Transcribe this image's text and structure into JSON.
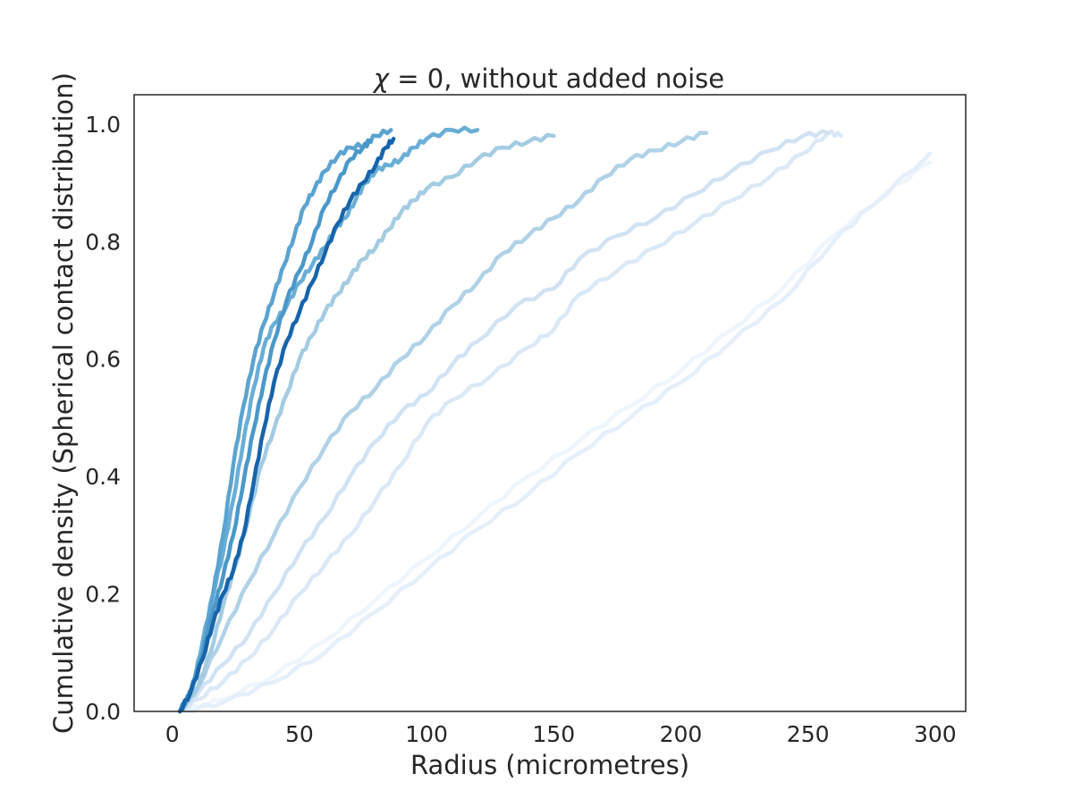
{
  "chart_data": {
    "type": "line",
    "title": "χ = 0, without added noise",
    "title_parts": {
      "symbol": "χ",
      "rest": " = 0, without added noise"
    },
    "xlabel": "Radius (micrometres)",
    "ylabel": "Cumulative density (Spherical contact distribution)",
    "xlim": [
      -15,
      312
    ],
    "ylim": [
      0,
      1.05
    ],
    "xticks": [
      0,
      50,
      100,
      150,
      200,
      250,
      300
    ],
    "yticks": [
      0.0,
      0.2,
      0.4,
      0.6,
      0.8,
      1.0
    ],
    "xtick_labels": [
      "0",
      "50",
      "100",
      "150",
      "200",
      "250",
      "300"
    ],
    "ytick_labels": [
      "0.0",
      "0.2",
      "0.4",
      "0.6",
      "0.8",
      "1.0"
    ],
    "grid": false,
    "legend": "none",
    "series": [
      {
        "color": "#eef5fc",
        "points": [
          [
            5,
            0
          ],
          [
            20,
            0.02
          ],
          [
            40,
            0.06
          ],
          [
            60,
            0.12
          ],
          [
            80,
            0.19
          ],
          [
            100,
            0.26
          ],
          [
            120,
            0.33
          ],
          [
            140,
            0.4
          ],
          [
            160,
            0.46
          ],
          [
            180,
            0.52
          ],
          [
            200,
            0.58
          ],
          [
            220,
            0.65
          ],
          [
            240,
            0.72
          ],
          [
            260,
            0.81
          ],
          [
            280,
            0.88
          ],
          [
            298,
            0.935
          ]
        ]
      },
      {
        "color": "#e5effa",
        "points": [
          [
            5,
            0
          ],
          [
            20,
            0.015
          ],
          [
            40,
            0.05
          ],
          [
            60,
            0.1
          ],
          [
            80,
            0.17
          ],
          [
            100,
            0.24
          ],
          [
            120,
            0.31
          ],
          [
            140,
            0.37
          ],
          [
            160,
            0.44
          ],
          [
            180,
            0.5
          ],
          [
            200,
            0.56
          ],
          [
            220,
            0.63
          ],
          [
            240,
            0.7
          ],
          [
            260,
            0.8
          ],
          [
            275,
            0.86
          ],
          [
            298,
            0.95
          ]
        ]
      },
      {
        "color": "#dbe9f6",
        "points": [
          [
            3,
            0
          ],
          [
            10,
            0.02
          ],
          [
            20,
            0.05
          ],
          [
            30,
            0.09
          ],
          [
            40,
            0.14
          ],
          [
            50,
            0.2
          ],
          [
            60,
            0.25
          ],
          [
            70,
            0.3
          ],
          [
            80,
            0.36
          ],
          [
            90,
            0.42
          ],
          [
            100,
            0.49
          ],
          [
            110,
            0.53
          ],
          [
            125,
            0.57
          ],
          [
            140,
            0.62
          ],
          [
            150,
            0.65
          ],
          [
            160,
            0.71
          ],
          [
            175,
            0.75
          ],
          [
            190,
            0.79
          ],
          [
            205,
            0.83
          ],
          [
            220,
            0.87
          ],
          [
            235,
            0.91
          ],
          [
            248,
            0.95
          ],
          [
            258,
            0.985
          ],
          [
            263,
            0.98
          ]
        ]
      },
      {
        "color": "#d1e3f3",
        "points": [
          [
            3,
            0
          ],
          [
            10,
            0.03
          ],
          [
            20,
            0.08
          ],
          [
            30,
            0.13
          ],
          [
            40,
            0.2
          ],
          [
            50,
            0.27
          ],
          [
            60,
            0.33
          ],
          [
            70,
            0.4
          ],
          [
            80,
            0.46
          ],
          [
            90,
            0.51
          ],
          [
            100,
            0.54
          ],
          [
            110,
            0.59
          ],
          [
            120,
            0.63
          ],
          [
            135,
            0.69
          ],
          [
            150,
            0.72
          ],
          [
            160,
            0.77
          ],
          [
            175,
            0.81
          ],
          [
            190,
            0.84
          ],
          [
            205,
            0.88
          ],
          [
            220,
            0.92
          ],
          [
            235,
            0.955
          ],
          [
            248,
            0.98
          ],
          [
            258,
            0.985
          ]
        ]
      },
      {
        "color": "#b0d2e7",
        "points": [
          [
            3,
            0
          ],
          [
            10,
            0.04
          ],
          [
            20,
            0.13
          ],
          [
            30,
            0.22
          ],
          [
            40,
            0.3
          ],
          [
            50,
            0.38
          ],
          [
            60,
            0.45
          ],
          [
            70,
            0.51
          ],
          [
            80,
            0.55
          ],
          [
            90,
            0.6
          ],
          [
            100,
            0.64
          ],
          [
            110,
            0.69
          ],
          [
            120,
            0.73
          ],
          [
            130,
            0.78
          ],
          [
            140,
            0.81
          ],
          [
            150,
            0.84
          ],
          [
            160,
            0.87
          ],
          [
            170,
            0.91
          ],
          [
            180,
            0.94
          ],
          [
            190,
            0.955
          ],
          [
            200,
            0.97
          ],
          [
            210,
            0.985
          ]
        ]
      },
      {
        "color": "#a3cbe2",
        "points": [
          [
            3,
            0
          ],
          [
            10,
            0.04
          ],
          [
            15,
            0.1
          ],
          [
            20,
            0.18
          ],
          [
            25,
            0.25
          ],
          [
            30,
            0.33
          ],
          [
            35,
            0.42
          ],
          [
            40,
            0.48
          ],
          [
            45,
            0.54
          ],
          [
            50,
            0.6
          ],
          [
            55,
            0.64
          ],
          [
            60,
            0.68
          ],
          [
            65,
            0.71
          ],
          [
            70,
            0.74
          ],
          [
            75,
            0.77
          ],
          [
            80,
            0.79
          ],
          [
            85,
            0.82
          ],
          [
            90,
            0.85
          ],
          [
            95,
            0.87
          ],
          [
            100,
            0.89
          ],
          [
            110,
            0.91
          ],
          [
            120,
            0.94
          ],
          [
            130,
            0.96
          ],
          [
            140,
            0.97
          ],
          [
            150,
            0.98
          ]
        ]
      },
      {
        "color": "#6aaed6",
        "points": [
          [
            3,
            0
          ],
          [
            8,
            0.04
          ],
          [
            12,
            0.12
          ],
          [
            16,
            0.2
          ],
          [
            20,
            0.27
          ],
          [
            24,
            0.36
          ],
          [
            28,
            0.46
          ],
          [
            32,
            0.55
          ],
          [
            36,
            0.62
          ],
          [
            40,
            0.66
          ],
          [
            45,
            0.69
          ],
          [
            50,
            0.73
          ],
          [
            55,
            0.76
          ],
          [
            60,
            0.79
          ],
          [
            64,
            0.82
          ],
          [
            68,
            0.84
          ],
          [
            72,
            0.87
          ],
          [
            76,
            0.9
          ],
          [
            80,
            0.92
          ],
          [
            85,
            0.93
          ],
          [
            90,
            0.94
          ],
          [
            95,
            0.96
          ],
          [
            100,
            0.975
          ],
          [
            110,
            0.99
          ],
          [
            120,
            0.99
          ]
        ]
      },
      {
        "color": "#5ba3d0",
        "points": [
          [
            3,
            0
          ],
          [
            7,
            0.03
          ],
          [
            12,
            0.1
          ],
          [
            16,
            0.2
          ],
          [
            20,
            0.3
          ],
          [
            24,
            0.42
          ],
          [
            28,
            0.52
          ],
          [
            32,
            0.6
          ],
          [
            36,
            0.66
          ],
          [
            40,
            0.71
          ],
          [
            44,
            0.76
          ],
          [
            48,
            0.81
          ],
          [
            52,
            0.86
          ],
          [
            56,
            0.89
          ],
          [
            60,
            0.92
          ],
          [
            65,
            0.945
          ],
          [
            70,
            0.96
          ],
          [
            76,
            0.965
          ],
          [
            80,
            0.98
          ],
          [
            86,
            0.99
          ]
        ]
      },
      {
        "color": "#4a98c9",
        "points": [
          [
            3,
            0
          ],
          [
            7,
            0.03
          ],
          [
            12,
            0.1
          ],
          [
            16,
            0.17
          ],
          [
            20,
            0.23
          ],
          [
            24,
            0.3
          ],
          [
            28,
            0.39
          ],
          [
            32,
            0.48
          ],
          [
            36,
            0.56
          ],
          [
            40,
            0.63
          ],
          [
            45,
            0.7
          ],
          [
            50,
            0.75
          ],
          [
            55,
            0.8
          ],
          [
            60,
            0.86
          ],
          [
            65,
            0.9
          ],
          [
            70,
            0.94
          ],
          [
            75,
            0.96
          ],
          [
            78,
            0.97
          ]
        ]
      },
      {
        "color": "#1764ab",
        "points": [
          [
            3,
            0
          ],
          [
            7,
            0.03
          ],
          [
            12,
            0.09
          ],
          [
            16,
            0.15
          ],
          [
            20,
            0.2
          ],
          [
            24,
            0.24
          ],
          [
            28,
            0.3
          ],
          [
            32,
            0.39
          ],
          [
            36,
            0.48
          ],
          [
            40,
            0.56
          ],
          [
            45,
            0.63
          ],
          [
            50,
            0.68
          ],
          [
            55,
            0.73
          ],
          [
            60,
            0.78
          ],
          [
            65,
            0.83
          ],
          [
            70,
            0.87
          ],
          [
            75,
            0.9
          ],
          [
            80,
            0.93
          ],
          [
            84,
            0.96
          ],
          [
            87,
            0.975
          ]
        ]
      }
    ]
  }
}
